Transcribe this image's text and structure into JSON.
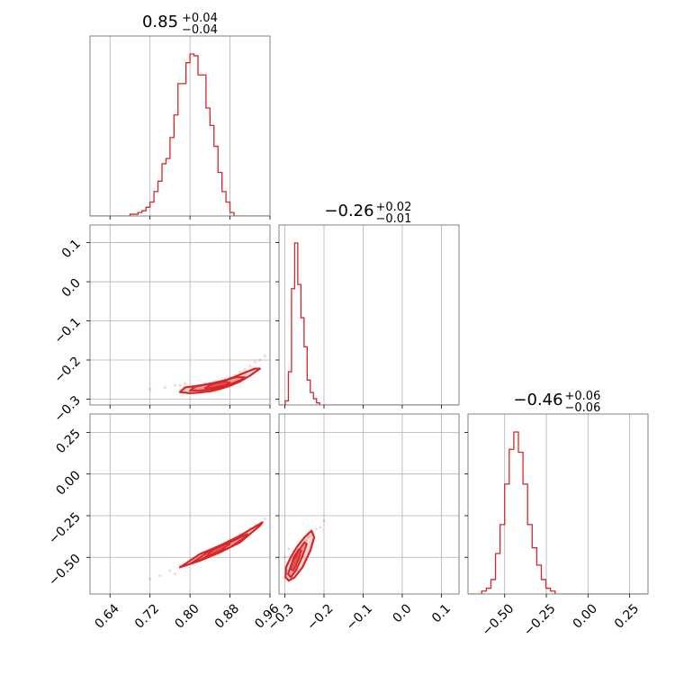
{
  "chart_data": {
    "type": "corner",
    "color": "#d62728",
    "grid": true,
    "parameters": [
      {
        "title_value": "0.85",
        "title_plus": "+0.04",
        "title_minus": "−0.04"
      },
      {
        "title_value": "−0.26",
        "title_plus": "+0.02",
        "title_minus": "−0.01"
      },
      {
        "title_value": "−0.46",
        "title_plus": "+0.06",
        "title_minus": "−0.06"
      }
    ],
    "axes": [
      {
        "range": [
          0.6,
          0.96
        ],
        "ticks": [
          0.64,
          0.72,
          0.8,
          0.88,
          0.96
        ],
        "tick_labels": [
          "0.64",
          "0.72",
          "0.80",
          "0.88",
          "0.96"
        ]
      },
      {
        "range": [
          -0.315,
          0.145
        ],
        "ticks": [
          -0.3,
          -0.2,
          -0.1,
          0.0,
          0.1
        ],
        "tick_labels": [
          "−0.3",
          "−0.2",
          "−0.1",
          "0.0",
          "0.1"
        ]
      },
      {
        "range": [
          -0.72,
          0.36
        ],
        "ticks": [
          -0.5,
          -0.25,
          0.0,
          0.25
        ],
        "tick_labels": [
          "−0.50",
          "−0.25",
          "0.00",
          "0.25"
        ]
      }
    ],
    "histograms": [
      {
        "bin_start": 0.6,
        "bin_width": 0.008,
        "counts": [
          0,
          0,
          0,
          0,
          0,
          0,
          0,
          0,
          0,
          0,
          1,
          1,
          2,
          3,
          5,
          8,
          14,
          20,
          30,
          33,
          45,
          58,
          76,
          76,
          88,
          93,
          92,
          81,
          81,
          62,
          52,
          40,
          25,
          14,
          8,
          2,
          0,
          0,
          0,
          0,
          0,
          0,
          0,
          0,
          0,
          0,
          0
        ]
      },
      {
        "bin_start": -0.315,
        "bin_width": 0.008,
        "counts": [
          0,
          0,
          2,
          16,
          56,
          78,
          58,
          42,
          28,
          12,
          6,
          3,
          1,
          0,
          0,
          0,
          0,
          0,
          0,
          0,
          0,
          0,
          0,
          0,
          0,
          0,
          0,
          0,
          0,
          0,
          0,
          0,
          0,
          0,
          0,
          0,
          0,
          0,
          0,
          0,
          0,
          0,
          0,
          0,
          0,
          0,
          0,
          0,
          0,
          0,
          0,
          0,
          0,
          0,
          0,
          0,
          0,
          0
        ]
      },
      {
        "bin_start": -0.72,
        "bin_width": 0.0275,
        "counts": [
          0,
          0,
          0,
          1,
          2,
          5,
          14,
          24,
          38,
          50,
          56,
          49,
          38,
          24,
          16,
          10,
          5,
          2,
          1,
          0,
          0,
          0,
          0,
          0,
          0,
          0,
          0,
          0,
          0,
          0,
          0,
          0,
          0,
          0,
          0,
          0,
          0,
          0,
          0,
          0
        ]
      }
    ],
    "pairs": [
      {
        "x_param": 0,
        "y_param": 1,
        "samples_x": [
          0.72,
          0.75,
          0.77,
          0.78,
          0.79,
          0.8,
          0.8,
          0.81,
          0.82,
          0.83,
          0.84,
          0.85,
          0.86,
          0.87,
          0.88,
          0.89,
          0.9,
          0.91,
          0.92,
          0.93,
          0.94,
          0.95,
          0.78,
          0.79,
          0.81,
          0.83,
          0.85,
          0.87,
          0.89,
          0.91
        ],
        "samples_y": [
          -0.275,
          -0.27,
          -0.265,
          -0.265,
          -0.275,
          -0.27,
          -0.28,
          -0.27,
          -0.265,
          -0.26,
          -0.265,
          -0.255,
          -0.26,
          -0.25,
          -0.245,
          -0.24,
          -0.23,
          -0.225,
          -0.215,
          -0.205,
          -0.2,
          -0.19,
          -0.28,
          -0.26,
          -0.275,
          -0.27,
          -0.265,
          -0.255,
          -0.245,
          -0.235
        ],
        "contours": [
          {
            "level": "outer",
            "x": [
              0.78,
              0.8,
              0.82,
              0.84,
              0.86,
              0.88,
              0.9,
              0.92,
              0.94,
              0.93,
              0.91,
              0.89,
              0.87,
              0.85,
              0.83,
              0.81,
              0.79,
              0.78
            ],
            "y": [
              -0.282,
              -0.285,
              -0.283,
              -0.28,
              -0.274,
              -0.266,
              -0.255,
              -0.24,
              -0.222,
              -0.222,
              -0.232,
              -0.243,
              -0.252,
              -0.258,
              -0.263,
              -0.267,
              -0.27,
              -0.282
            ]
          },
          {
            "level": "middle",
            "x": [
              0.8,
              0.82,
              0.84,
              0.86,
              0.88,
              0.9,
              0.91,
              0.89,
              0.87,
              0.85,
              0.83,
              0.81,
              0.8
            ],
            "y": [
              -0.278,
              -0.278,
              -0.275,
              -0.27,
              -0.262,
              -0.252,
              -0.244,
              -0.244,
              -0.252,
              -0.258,
              -0.263,
              -0.268,
              -0.278
            ]
          },
          {
            "level": "inner",
            "x": [
              0.83,
              0.85,
              0.87,
              0.88,
              0.87,
              0.85,
              0.84,
              0.83
            ],
            "y": [
              -0.272,
              -0.27,
              -0.264,
              -0.258,
              -0.255,
              -0.26,
              -0.264,
              -0.272
            ]
          }
        ]
      },
      {
        "x_param": 0,
        "y_param": 2,
        "samples_x": [
          0.72,
          0.74,
          0.76,
          0.77,
          0.79,
          0.8,
          0.82,
          0.83,
          0.85,
          0.86,
          0.88,
          0.89,
          0.9,
          0.92,
          0.93,
          0.95,
          0.78,
          0.81,
          0.84,
          0.87
        ],
        "samples_y": [
          -0.63,
          -0.61,
          -0.58,
          -0.6,
          -0.54,
          -0.52,
          -0.5,
          -0.49,
          -0.45,
          -0.44,
          -0.4,
          -0.39,
          -0.36,
          -0.33,
          -0.31,
          -0.27,
          -0.55,
          -0.51,
          -0.47,
          -0.42
        ],
        "contours": [
          {
            "level": "outer",
            "x": [
              0.78,
              0.82,
              0.86,
              0.9,
              0.94,
              0.945,
              0.9,
              0.86,
              0.82,
              0.78
            ],
            "y": [
              -0.56,
              -0.52,
              -0.47,
              -0.41,
              -0.31,
              -0.29,
              -0.37,
              -0.43,
              -0.48,
              -0.56
            ]
          },
          {
            "level": "middle",
            "x": [
              0.8,
              0.84,
              0.88,
              0.91,
              0.915,
              0.88,
              0.84,
              0.8
            ],
            "y": [
              -0.54,
              -0.49,
              -0.44,
              -0.38,
              -0.36,
              -0.41,
              -0.46,
              -0.54
            ]
          },
          {
            "level": "inner",
            "x": [
              0.83,
              0.86,
              0.88,
              0.875,
              0.85,
              0.83
            ],
            "y": [
              -0.5,
              -0.46,
              -0.42,
              -0.41,
              -0.44,
              -0.5
            ]
          }
        ]
      },
      {
        "x_param": 1,
        "y_param": 2,
        "samples_x": [
          -0.3,
          -0.295,
          -0.29,
          -0.285,
          -0.28,
          -0.275,
          -0.27,
          -0.265,
          -0.26,
          -0.255,
          -0.25,
          -0.245,
          -0.24,
          -0.235,
          -0.23,
          -0.22,
          -0.21,
          -0.2,
          -0.3,
          -0.29,
          -0.28,
          -0.27
        ],
        "samples_y": [
          -0.62,
          -0.58,
          -0.6,
          -0.55,
          -0.52,
          -0.56,
          -0.5,
          -0.47,
          -0.5,
          -0.44,
          -0.42,
          -0.4,
          -0.38,
          -0.37,
          -0.35,
          -0.33,
          -0.32,
          -0.28,
          -0.5,
          -0.45,
          -0.62,
          -0.58
        ],
        "contours": [
          {
            "level": "outer",
            "x": [
              -0.298,
              -0.29,
              -0.275,
              -0.255,
              -0.235,
              -0.225,
              -0.232,
              -0.25,
              -0.27,
              -0.285,
              -0.297,
              -0.298
            ],
            "y": [
              -0.62,
              -0.64,
              -0.62,
              -0.56,
              -0.46,
              -0.38,
              -0.34,
              -0.38,
              -0.44,
              -0.5,
              -0.56,
              -0.62
            ]
          },
          {
            "level": "middle",
            "x": [
              -0.292,
              -0.285,
              -0.272,
              -0.256,
              -0.244,
              -0.25,
              -0.265,
              -0.28,
              -0.292
            ],
            "y": [
              -0.6,
              -0.62,
              -0.58,
              -0.5,
              -0.42,
              -0.41,
              -0.46,
              -0.52,
              -0.6
            ]
          },
          {
            "level": "inner",
            "x": [
              -0.286,
              -0.278,
              -0.266,
              -0.258,
              -0.265,
              -0.278,
              -0.286
            ],
            "y": [
              -0.57,
              -0.58,
              -0.52,
              -0.46,
              -0.45,
              -0.5,
              -0.57
            ]
          }
        ]
      }
    ]
  }
}
